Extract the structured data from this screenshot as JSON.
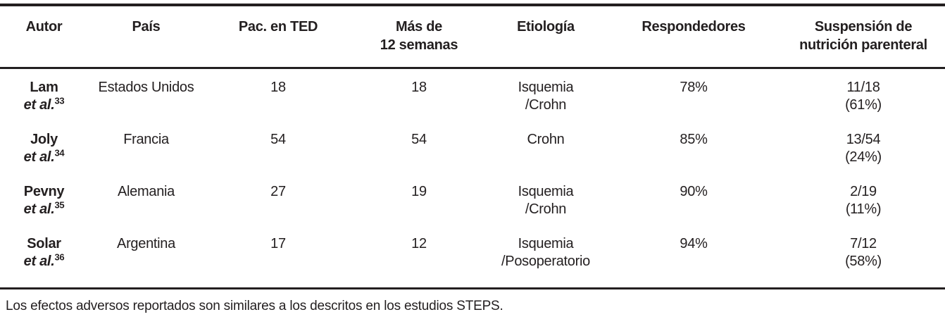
{
  "page": {
    "background_color": "#ffffff",
    "text_color": "#231f20",
    "rule_color": "#231f20"
  },
  "table": {
    "columns": [
      {
        "line1": "Autor"
      },
      {
        "line1": "País"
      },
      {
        "line1": "Pac. en TED"
      },
      {
        "line1": "Más de",
        "line2": "12 semanas"
      },
      {
        "line1": "Etiología"
      },
      {
        "line1": "Respondedores"
      },
      {
        "line1": "Suspensión de",
        "line2": "nutrición parenteral"
      }
    ],
    "rows": [
      {
        "author": "Lam",
        "etal": "et al.",
        "ref": "33",
        "country": "Estados Unidos",
        "pac_en_ted": "18",
        "mas_de_12_semanas": "18",
        "etiologia_line1": "Isquemia",
        "etiologia_line2": "/Crohn",
        "respondedores": "78%",
        "suspension_line1": "11/18",
        "suspension_line2": "(61%)"
      },
      {
        "author": "Joly",
        "etal": "et al.",
        "ref": "34",
        "country": "Francia",
        "pac_en_ted": "54",
        "mas_de_12_semanas": "54",
        "etiologia_line1": "Crohn",
        "etiologia_line2": "",
        "respondedores": "85%",
        "suspension_line1": "13/54",
        "suspension_line2": "(24%)"
      },
      {
        "author": "Pevny",
        "etal": "et al.",
        "ref": "35",
        "country": "Alemania",
        "pac_en_ted": "27",
        "mas_de_12_semanas": "19",
        "etiologia_line1": "Isquemia",
        "etiologia_line2": "/Crohn",
        "respondedores": "90%",
        "suspension_line1": "2/19",
        "suspension_line2": "(11%)"
      },
      {
        "author": "Solar",
        "etal": "et al.",
        "ref": "36",
        "country": "Argentina",
        "pac_en_ted": "17",
        "mas_de_12_semanas": "12",
        "etiologia_line1": "Isquemia",
        "etiologia_line2": "/Posoperatorio",
        "respondedores": "94%",
        "suspension_line1": "7/12",
        "suspension_line2": "(58%)"
      }
    ],
    "footnote": "Los efectos adversos reportados son similares a los descritos en los estudios STEPS."
  }
}
